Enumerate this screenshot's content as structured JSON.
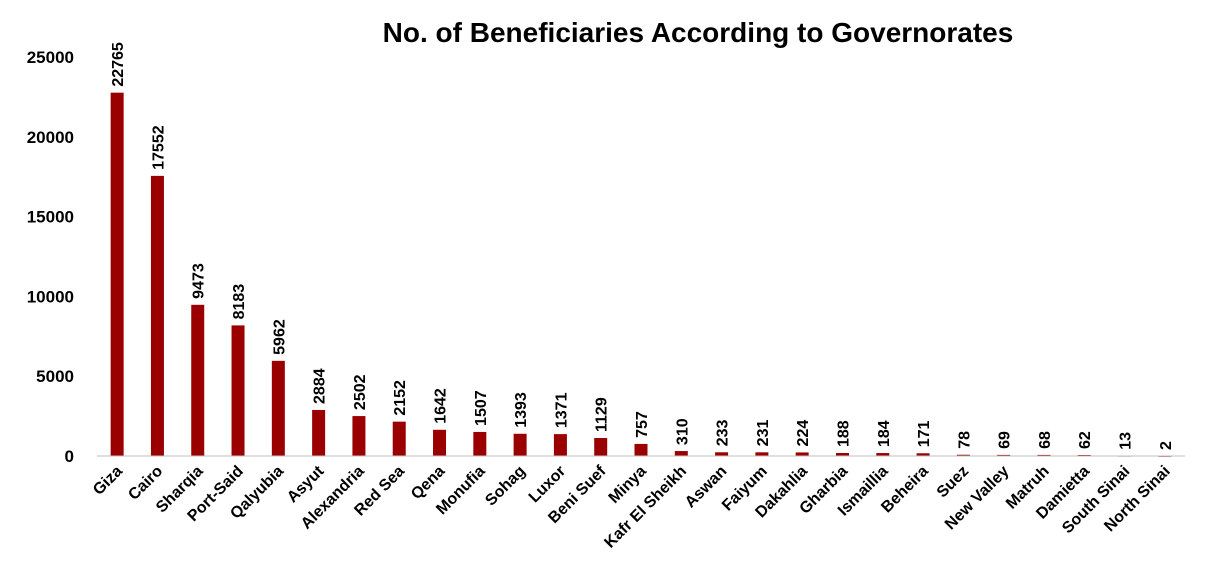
{
  "chart_data": {
    "type": "bar",
    "title": "No. of Beneficiaries According to Governorates",
    "xlabel": "",
    "ylabel": "",
    "ylim": [
      0,
      25000
    ],
    "yticks": [
      0,
      5000,
      10000,
      15000,
      20000,
      25000
    ],
    "grid": false,
    "legend": "none",
    "bar_color": "#9b0000",
    "categories": [
      "Giza",
      "Cairo",
      "Sharqia",
      "Port-Said",
      "Qalyubia",
      "Asyut",
      "Alexandria",
      "Red Sea",
      "Qena",
      "Monufia",
      "Sohag",
      "Luxor",
      "Beni Suef",
      "Minya",
      "Kafr El Sheikh",
      "Aswan",
      "Faiyum",
      "Dakahlia",
      "Gharbia",
      "Ismaillia",
      "Beheira",
      "Suez",
      "New Valley",
      "Matruh",
      "Damietta",
      "South Sinai",
      "North Sinai"
    ],
    "values": [
      22765,
      17552,
      9473,
      8183,
      5962,
      2884,
      2502,
      2152,
      1642,
      1507,
      1393,
      1371,
      1129,
      757,
      310,
      233,
      231,
      224,
      188,
      184,
      171,
      78,
      69,
      68,
      62,
      13,
      2
    ]
  }
}
